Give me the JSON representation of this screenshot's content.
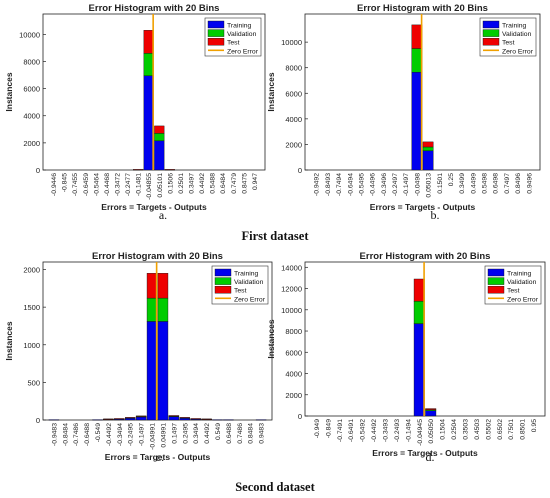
{
  "figure": {
    "dataset_labels": [
      "First dataset",
      "Second dataset"
    ],
    "panel_captions": [
      "a.",
      "b.",
      "c.",
      "d."
    ]
  },
  "colors": {
    "training": "#0000ee",
    "validation": "#00cc00",
    "test": "#ee0000",
    "zero_error": "#f0a000"
  },
  "chart_data": [
    {
      "type": "bar",
      "stacked": true,
      "title": "Error Histogram with 20 Bins",
      "xlabel": "Errors = Targets - Outputs",
      "ylabel": "Instances",
      "categories": [
        "-0.9446",
        "-0.845",
        "-0.7455",
        "-0.6459",
        "-0.5464",
        "-0.4468",
        "-0.3472",
        "-0.2477",
        "-0.1481",
        "-0.04855",
        "0.05101",
        "0.1506",
        "0.2501",
        "0.3497",
        "0.4492",
        "0.5488",
        "0.6484",
        "0.7479",
        "0.8475",
        "0.947"
      ],
      "series": [
        {
          "name": "Training",
          "values": [
            0,
            0,
            0,
            0,
            0,
            0,
            0,
            0,
            30,
            6950,
            2150,
            30,
            0,
            0,
            0,
            0,
            0,
            0,
            0,
            0
          ]
        },
        {
          "name": "Validation",
          "values": [
            0,
            0,
            0,
            0,
            0,
            0,
            0,
            0,
            5,
            1650,
            550,
            5,
            0,
            0,
            0,
            0,
            0,
            0,
            0,
            0
          ]
        },
        {
          "name": "Test",
          "values": [
            0,
            0,
            0,
            0,
            0,
            0,
            0,
            0,
            5,
            1700,
            550,
            5,
            0,
            0,
            0,
            0,
            0,
            0,
            0,
            0
          ]
        }
      ],
      "zero_error_line": {
        "name": "Zero Error",
        "x": 0
      },
      "ylim": [
        0,
        11500
      ],
      "yticks": [
        0,
        2000,
        4000,
        6000,
        8000,
        10000
      ],
      "legend": "top-right",
      "grid": false
    },
    {
      "type": "bar",
      "stacked": true,
      "title": "Error Histogram with 20 Bins",
      "xlabel": "Errors = Targets - Outputs",
      "ylabel": "Instances",
      "categories": [
        "-0.9492",
        "-0.8493",
        "-0.7494",
        "-0.6494",
        "-0.5495",
        "-0.4496",
        "-0.3496",
        "-0.2497",
        "-0.1497",
        "-0.0498",
        "0.05013",
        "0.1501",
        "0.25",
        "0.3499",
        "0.4499",
        "0.5498",
        "0.6498",
        "0.7497",
        "0.8496",
        "0.9496"
      ],
      "series": [
        {
          "name": "Training",
          "values": [
            0,
            0,
            0,
            0,
            0,
            0,
            0,
            0,
            0,
            7650,
            1500,
            0,
            0,
            0,
            0,
            0,
            0,
            0,
            0,
            0
          ]
        },
        {
          "name": "Validation",
          "values": [
            0,
            0,
            0,
            0,
            0,
            0,
            0,
            0,
            0,
            1850,
            300,
            0,
            0,
            0,
            0,
            0,
            0,
            0,
            0,
            0
          ]
        },
        {
          "name": "Test",
          "values": [
            0,
            0,
            0,
            0,
            0,
            0,
            0,
            0,
            0,
            1850,
            400,
            0,
            0,
            0,
            0,
            0,
            0,
            0,
            0,
            0
          ]
        }
      ],
      "zero_error_line": {
        "name": "Zero Error",
        "x": 0
      },
      "ylim": [
        0,
        12200
      ],
      "yticks": [
        0,
        2000,
        4000,
        6000,
        8000,
        10000
      ],
      "legend": "top-right",
      "grid": false
    },
    {
      "type": "bar",
      "stacked": true,
      "title": "Error Histogram with 20 Bins",
      "xlabel": "Errors = Targets - Outputs",
      "ylabel": "Instances",
      "categories": [
        "-0.9483",
        "-0.8484",
        "-0.7486",
        "-0.6488",
        "-0.549",
        "-0.4492",
        "-0.3494",
        "-0.2495",
        "-0.1497",
        "-0.04991",
        "0.04991",
        "0.1497",
        "0.2495",
        "0.3494",
        "0.4492",
        "0.549",
        "0.6488",
        "0.7486",
        "0.8484",
        "0.9483"
      ],
      "series": [
        {
          "name": "Training",
          "values": [
            5,
            0,
            0,
            0,
            5,
            10,
            15,
            25,
            40,
            1310,
            1310,
            45,
            25,
            15,
            10,
            5,
            5,
            0,
            0,
            5
          ]
        },
        {
          "name": "Validation",
          "values": [
            0,
            0,
            0,
            0,
            0,
            2,
            3,
            5,
            8,
            310,
            310,
            8,
            5,
            3,
            2,
            0,
            0,
            0,
            0,
            0
          ]
        },
        {
          "name": "Test",
          "values": [
            0,
            0,
            0,
            0,
            0,
            3,
            2,
            5,
            7,
            330,
            330,
            7,
            5,
            2,
            3,
            0,
            0,
            0,
            0,
            0
          ]
        }
      ],
      "zero_error_line": {
        "name": "Zero Error",
        "x": 0
      },
      "ylim": [
        0,
        2100
      ],
      "yticks": [
        0,
        500,
        1000,
        1500,
        2000
      ],
      "legend": "top-right",
      "grid": false
    },
    {
      "type": "bar",
      "stacked": true,
      "title": "Error Histogram with 20 Bins",
      "xlabel": "Errors = Targets - Outputs",
      "ylabel": "Instances",
      "categories": [
        "-0.949",
        "-0.849",
        "-0.7491",
        "-0.6491",
        "-0.5492",
        "-0.4492",
        "-0.3493",
        "-0.2493",
        "-0.1494",
        "-0.04945",
        "0.05050",
        "0.1504",
        "0.2504",
        "0.3503",
        "0.4503",
        "0.5502",
        "0.6502",
        "0.7501",
        "0.8501",
        "0.95"
      ],
      "series": [
        {
          "name": "Training",
          "values": [
            0,
            0,
            0,
            0,
            0,
            0,
            0,
            0,
            0,
            8700,
            500,
            0,
            0,
            0,
            0,
            0,
            0,
            0,
            0,
            0
          ]
        },
        {
          "name": "Validation",
          "values": [
            0,
            0,
            0,
            0,
            0,
            0,
            0,
            0,
            0,
            2100,
            100,
            0,
            0,
            0,
            0,
            0,
            0,
            0,
            0,
            0
          ]
        },
        {
          "name": "Test",
          "values": [
            0,
            0,
            0,
            0,
            0,
            0,
            0,
            0,
            0,
            2100,
            100,
            0,
            0,
            0,
            0,
            0,
            0,
            0,
            0,
            0
          ]
        }
      ],
      "zero_error_line": {
        "name": "Zero Error",
        "x": 0
      },
      "ylim": [
        0,
        14500
      ],
      "yticks": [
        0,
        2000,
        4000,
        6000,
        8000,
        10000,
        12000,
        14000
      ],
      "legend": "top-right",
      "grid": false
    }
  ]
}
